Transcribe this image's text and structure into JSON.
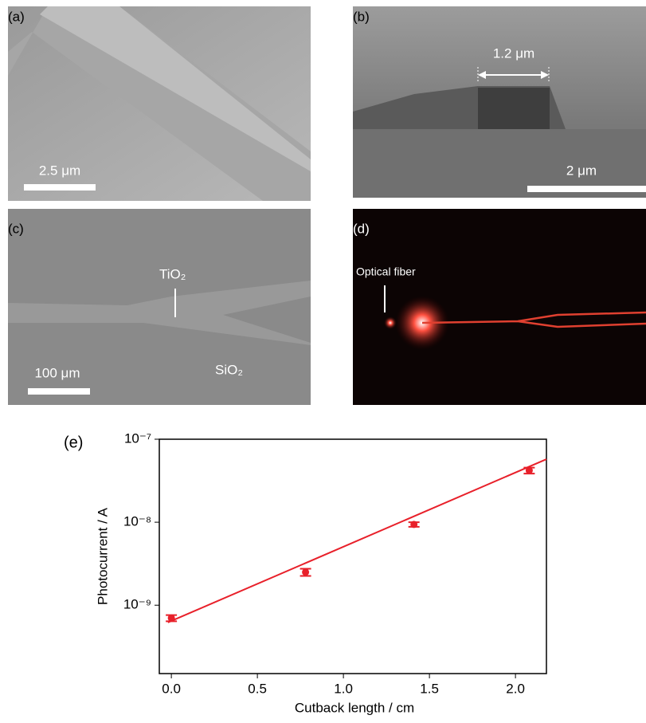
{
  "panels": [
    {
      "label": "(a)",
      "scale_bar": "2.5 μm"
    },
    {
      "label": "(b)",
      "scale_bar": "2 μm",
      "width_label": "1.2 μm"
    },
    {
      "label": "(c)",
      "scale_bar": "100 μm",
      "top_material": "TiO₂",
      "bottom_material": "SiO₂"
    },
    {
      "label": "(d)",
      "annotation": "Optical fiber"
    }
  ],
  "chart_data": {
    "type": "scatter",
    "panel_label": "(e)",
    "x_label": "Cutback length / cm",
    "y_label": "Photocurrent / A",
    "log_y": true,
    "color": "#e8202a",
    "xlim": [
      -0.07,
      2.18
    ],
    "ylim": [
      1.5e-10,
      1e-07
    ],
    "xticks": [
      {
        "value": 0,
        "label": "0.0"
      },
      0.5,
      {
        "value": 1,
        "label": "1.0"
      },
      1.5,
      {
        "value": 2,
        "label": "2.0"
      }
    ],
    "yticks": [
      {
        "value": 1e-09,
        "label": "10⁻⁹"
      },
      {
        "value": 1e-08,
        "label": "10⁻⁸"
      },
      {
        "value": 1e-07,
        "label": "10⁻⁷"
      }
    ],
    "x": [
      0,
      0.78,
      1.41,
      2.08
    ],
    "values": [
      7e-10,
      2.5e-09,
      9.4e-09,
      4.2e-08
    ],
    "errors": [
      6e-11,
      2.5e-10,
      6e-10,
      3.5e-09
    ],
    "fit": {
      "x": [
        -0.02,
        2.18
      ],
      "values": [
        6.2e-10,
        5.75e-08
      ]
    }
  }
}
